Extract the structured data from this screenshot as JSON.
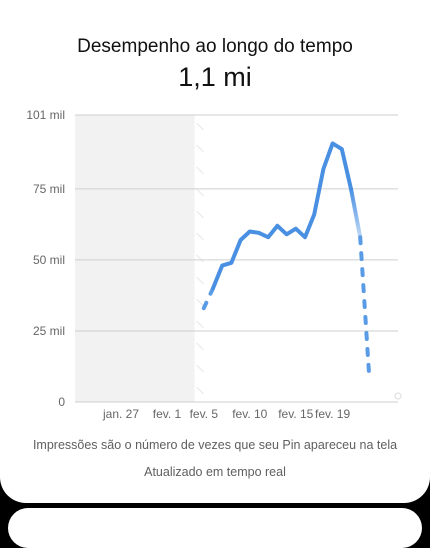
{
  "header": {
    "title": "Desempenho ao longo do tempo",
    "total_value": "1,1 mi"
  },
  "footer": {
    "caption": "Impressões são o número de vezes que seu Pin apareceu na tela",
    "updated_label": "Atualizado em tempo real"
  },
  "colors": {
    "line": "#4a90e2",
    "shaded_region": "#f2f2f2",
    "grid": "#cfcfcf",
    "axis_text": "#666666"
  },
  "chart_data": {
    "type": "line",
    "title": "Desempenho ao longo do tempo",
    "xlabel": "",
    "ylabel": "",
    "x_axis_type": "date",
    "x_range": [
      "2024-01-22",
      "2024-02-21"
    ],
    "ylim": [
      0,
      101000
    ],
    "y_ticks": [
      {
        "value": 0,
        "label": "0"
      },
      {
        "value": 25000,
        "label": "25 mil"
      },
      {
        "value": 50000,
        "label": "50 mil"
      },
      {
        "value": 75000,
        "label": "75 mil"
      },
      {
        "value": 101000,
        "label": "101 mil"
      }
    ],
    "x_ticks": [
      {
        "date": "2024-01-27",
        "label": "jan. 27"
      },
      {
        "date": "2024-02-01",
        "label": "fev. 1"
      },
      {
        "date": "2024-02-05",
        "label": "fev. 5"
      },
      {
        "date": "2024-02-10",
        "label": "fev. 10"
      },
      {
        "date": "2024-02-15",
        "label": "fev. 15"
      },
      {
        "date": "2024-02-19",
        "label": "fev. 19"
      }
    ],
    "shaded_range": [
      "2024-01-22",
      "2024-02-04"
    ],
    "grid": true,
    "series": [
      {
        "style": "dashed",
        "points": [
          {
            "date": "2024-02-05",
            "value": 33000
          },
          {
            "date": "2024-02-06",
            "value": 40000
          }
        ]
      },
      {
        "style": "solid",
        "points": [
          {
            "date": "2024-02-06",
            "value": 40000
          },
          {
            "date": "2024-02-07",
            "value": 48000
          },
          {
            "date": "2024-02-08",
            "value": 49000
          },
          {
            "date": "2024-02-09",
            "value": 57000
          },
          {
            "date": "2024-02-10",
            "value": 60000
          },
          {
            "date": "2024-02-11",
            "value": 59500
          },
          {
            "date": "2024-02-12",
            "value": 58000
          },
          {
            "date": "2024-02-13",
            "value": 62000
          },
          {
            "date": "2024-02-14",
            "value": 59000
          },
          {
            "date": "2024-02-15",
            "value": 61000
          },
          {
            "date": "2024-02-16",
            "value": 58000
          },
          {
            "date": "2024-02-17",
            "value": 66000
          },
          {
            "date": "2024-02-18",
            "value": 82000
          },
          {
            "date": "2024-02-19",
            "value": 91000
          },
          {
            "date": "2024-02-20",
            "value": 89000
          },
          {
            "date": "2024-02-21",
            "value": 75000
          }
        ]
      },
      {
        "style": "fading",
        "points": [
          {
            "date": "2024-02-21",
            "value": 75000
          },
          {
            "date": "2024-02-22",
            "value": 58000
          }
        ]
      },
      {
        "style": "dashed",
        "points": [
          {
            "date": "2024-02-22",
            "value": 58000
          },
          {
            "date": "2024-02-23",
            "value": 8000
          }
        ]
      }
    ]
  }
}
